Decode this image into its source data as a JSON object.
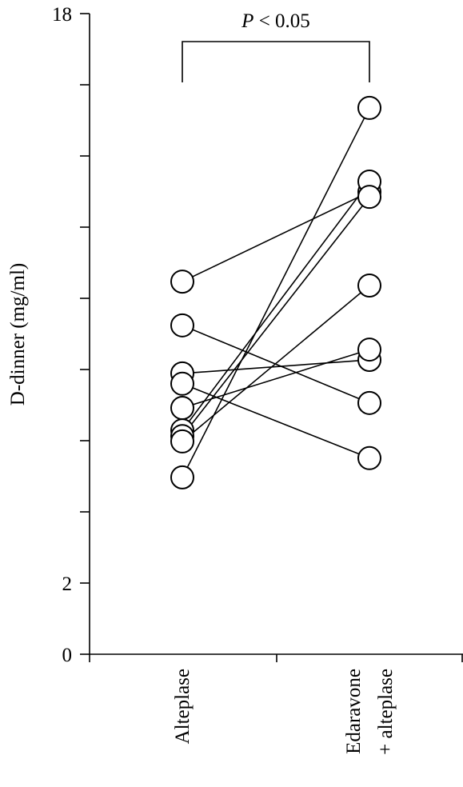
{
  "chart_data": {
    "type": "paired-scatter",
    "y_label": "D-dinner (mg/ml)",
    "annotation_symbol": "P",
    "annotation_text": "< 0.05",
    "categories": [
      "Alteplase",
      [
        "Edaravone",
        "+ alteplase"
      ]
    ],
    "ylim": [
      0,
      18
    ],
    "yticks": [
      0,
      2,
      18
    ],
    "minor_yticks": [
      4,
      6,
      8,
      10,
      12,
      14,
      16
    ],
    "color": "#000000",
    "marker_fill": "#ffffff",
    "series": [
      {
        "values": [
          10.47,
          12.99
        ]
      },
      {
        "values": [
          9.24,
          7.06
        ]
      },
      {
        "values": [
          7.89,
          8.27
        ]
      },
      {
        "values": [
          7.6,
          5.51
        ]
      },
      {
        "values": [
          6.92,
          8.56
        ]
      },
      {
        "values": [
          6.29,
          13.28
        ]
      },
      {
        "values": [
          6.13,
          12.85
        ]
      },
      {
        "values": [
          5.98,
          10.36
        ]
      },
      {
        "values": [
          4.97,
          15.35
        ]
      }
    ]
  }
}
